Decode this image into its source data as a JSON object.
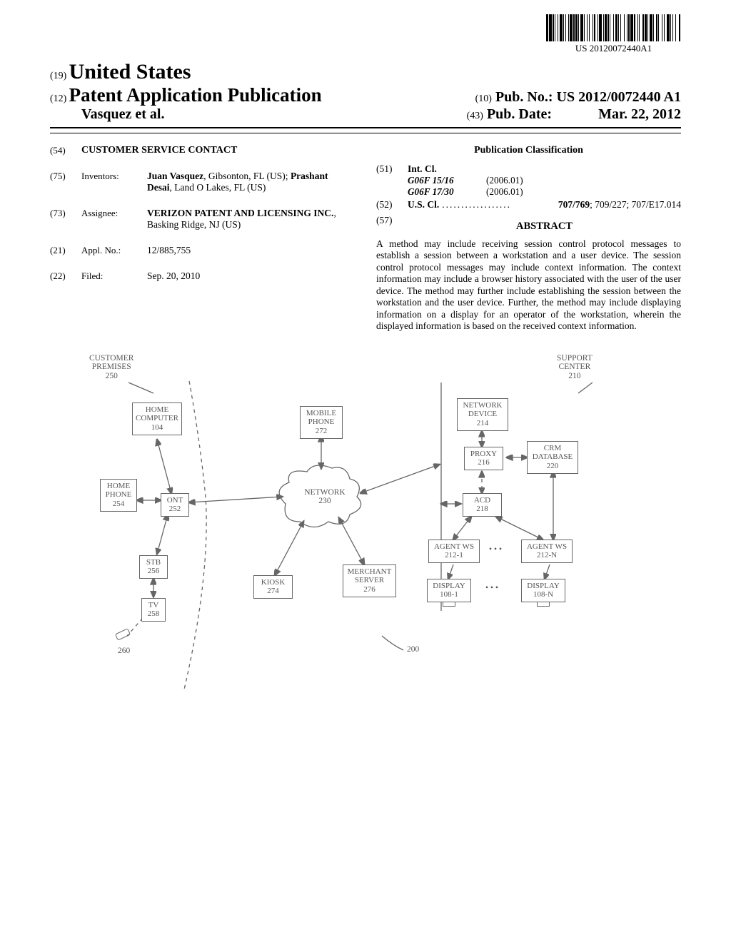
{
  "barcode_text": "US 20120072440A1",
  "header": {
    "country": "United States",
    "country_code": "(19)",
    "pub_type": "Patent Application Publication",
    "pub_type_code": "(12)",
    "authors": "Vasquez et al.",
    "pub_no_code": "(10)",
    "pub_no_label": "Pub. No.:",
    "pub_no": "US 2012/0072440 A1",
    "pub_date_code": "(43)",
    "pub_date_label": "Pub. Date:",
    "pub_date": "Mar. 22, 2012"
  },
  "left": {
    "title_code": "(54)",
    "title": "CUSTOMER SERVICE CONTACT",
    "inventors_code": "(75)",
    "inventors_label": "Inventors:",
    "inventors_html": "Juan Vasquez, Gibsonton, FL (US); Prashant Desai, Land O Lakes, FL (US)",
    "inventor_names": [
      "Juan Vasquez",
      "Prashant Desai"
    ],
    "assignee_code": "(73)",
    "assignee_label": "Assignee:",
    "assignee_name": "VERIZON PATENT AND LICENSING INC.",
    "assignee_loc": ", Basking Ridge, NJ (US)",
    "appl_code": "(21)",
    "appl_label": "Appl. No.:",
    "appl_no": "12/885,755",
    "filed_code": "(22)",
    "filed_label": "Filed:",
    "filed": "Sep. 20, 2010"
  },
  "right": {
    "class_head": "Publication Classification",
    "int_code": "(51)",
    "int_label": "Int. Cl.",
    "int_rows": [
      {
        "c1": "G06F 15/16",
        "c2": "(2006.01)"
      },
      {
        "c1": "G06F 17/30",
        "c2": "(2006.01)"
      }
    ],
    "us_code": "(52)",
    "us_label": "U.S. Cl.",
    "us_vals": "707/769; 709/227; 707/E17.014",
    "us_val_bold": "707/769",
    "abs_code": "(57)",
    "abs_head": "ABSTRACT",
    "abstract": "A method may include receiving session control protocol messages to establish a session between a workstation and a user device. The session control protocol messages may include context information. The context information may include a browser history associated with the user of the user device. The method may further include establishing the session between the workstation and the user device. Further, the method may include displaying information on a display for an operator of the workstation, wherein the displayed information is based on the received context information."
  },
  "figure": {
    "labels": {
      "customer": "CUSTOMER\nPREMISES\n250",
      "support": "SUPPORT\nCENTER\n210",
      "ref200": "200"
    },
    "boxes": {
      "home_computer": "HOME\nCOMPUTER\n104",
      "home_phone": "HOME\nPHONE\n254",
      "ont": "ONT\n252",
      "stb": "STB\n256",
      "tv": "TV\n258",
      "remote": "260",
      "mobile": "MOBILE\nPHONE\n272",
      "network": "NETWORK\n230",
      "kiosk": "KIOSK\n274",
      "merchant": "MERCHANT\nSERVER\n276",
      "netdev": "NETWORK\nDEVICE\n214",
      "proxy": "PROXY\n216",
      "crm": "CRM\nDATABASE\n220",
      "acd": "ACD\n218",
      "agent1": "AGENT WS\n212-1",
      "agentn": "AGENT WS\n212-N",
      "disp1": "DISPLAY\n108-1",
      "dispn": "DISPLAY\n108-N"
    },
    "style": {
      "box_border": "#666666",
      "text_color": "#555555",
      "line_color": "#666666"
    }
  }
}
